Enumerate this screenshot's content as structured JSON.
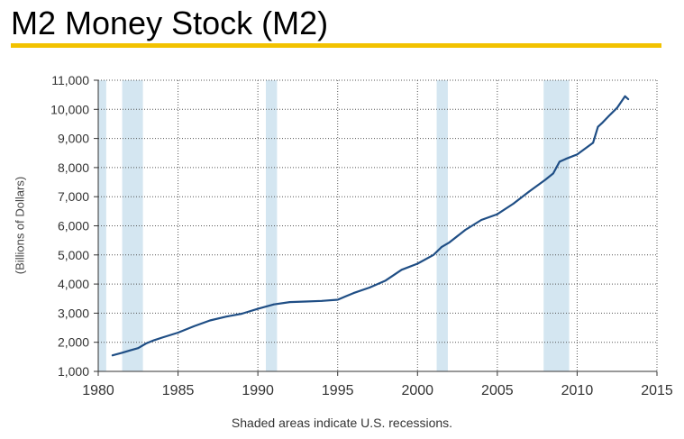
{
  "title": "M2 Money Stock (M2)",
  "footnote": "Shaded areas indicate U.S. recessions.",
  "colors": {
    "accent_rule": "#f2c200",
    "line": "#1f4e85",
    "recession": "#d4e6f1",
    "grid": "#555555"
  },
  "chart_data": {
    "type": "line",
    "title": "M2 Money Stock (M2)",
    "xlabel": "",
    "ylabel": "(Billions of Dollars)",
    "xlim": [
      1980,
      2015
    ],
    "ylim": [
      1000,
      11000
    ],
    "x_ticks": [
      1980,
      1985,
      1990,
      1995,
      2000,
      2005,
      2010,
      2015
    ],
    "x_tick_labels": [
      "1980",
      "1985",
      "1990",
      "1995",
      "2000",
      "2005",
      "2010",
      "2015"
    ],
    "y_ticks": [
      1000,
      2000,
      3000,
      4000,
      5000,
      6000,
      7000,
      8000,
      9000,
      10000,
      11000
    ],
    "y_tick_labels": [
      "1,000",
      "2,000",
      "3,000",
      "4,000",
      "5,000",
      "6,000",
      "7,000",
      "8,000",
      "9,000",
      "10,000",
      "11,000"
    ],
    "grid": true,
    "grid_style": "dotted",
    "recessions": [
      {
        "start": 1980.0,
        "end": 1980.5
      },
      {
        "start": 1981.5,
        "end": 1982.8
      },
      {
        "start": 1990.5,
        "end": 1991.2
      },
      {
        "start": 2001.2,
        "end": 2001.9
      },
      {
        "start": 2007.9,
        "end": 2009.5
      }
    ],
    "series": [
      {
        "x": [
          1980.9,
          1981.5,
          1982.0,
          1982.5,
          1983.0,
          1983.5,
          1984.0,
          1985.0,
          1986.0,
          1987.0,
          1988.0,
          1989.0,
          1990.0,
          1991.0,
          1992.0,
          1993.0,
          1994.0,
          1995.0,
          1996.0,
          1997.0,
          1998.0,
          1999.0,
          2000.0,
          2001.0,
          2001.5,
          2002.0,
          2003.0,
          2004.0,
          2005.0,
          2006.0,
          2007.0,
          2008.0,
          2008.5,
          2008.9,
          2009.3,
          2010.0,
          2011.0,
          2011.3,
          2011.6,
          2012.0,
          2012.5,
          2013.0,
          2013.2
        ],
        "y": [
          1550,
          1640,
          1720,
          1800,
          1960,
          2070,
          2160,
          2330,
          2550,
          2750,
          2880,
          2980,
          3150,
          3300,
          3380,
          3400,
          3420,
          3460,
          3690,
          3880,
          4120,
          4490,
          4700,
          5000,
          5270,
          5430,
          5860,
          6200,
          6400,
          6760,
          7180,
          7580,
          7800,
          8200,
          8300,
          8450,
          8850,
          9400,
          9550,
          9780,
          10050,
          10450,
          10350
        ]
      }
    ]
  }
}
